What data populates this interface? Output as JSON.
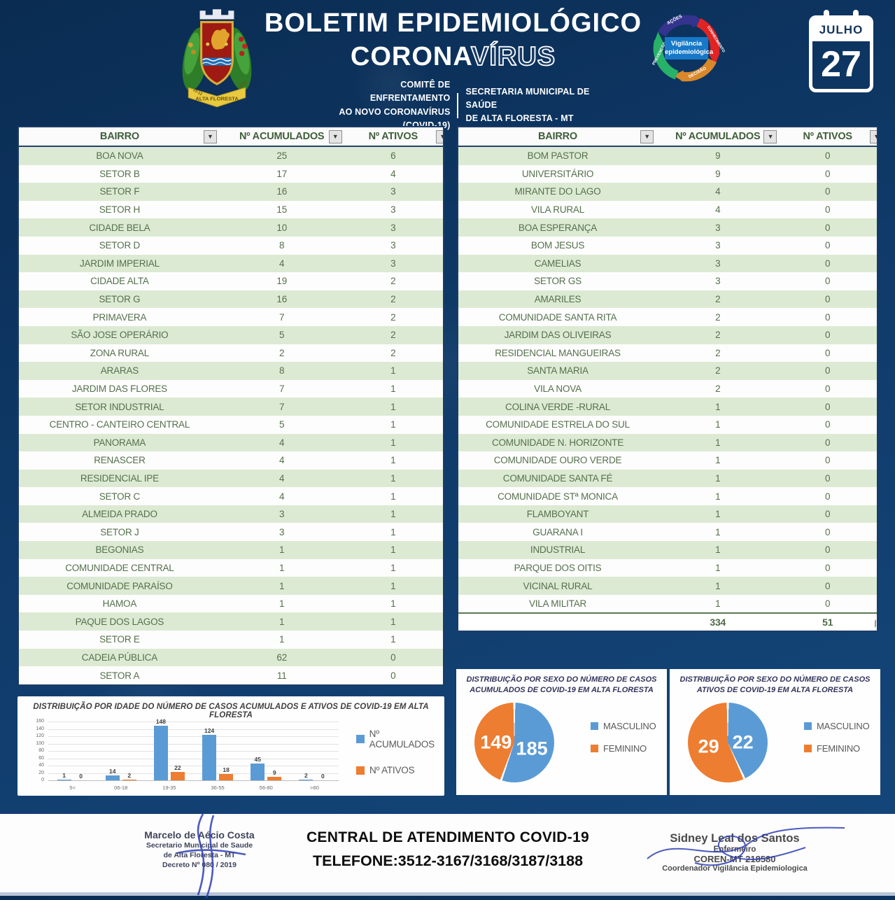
{
  "header": {
    "title_line1": "BOLETIM EPIDEMIOLÓGICO",
    "title_line2_solid": "CORONA",
    "title_line2_outline": "VÍRUS",
    "committee_line1": "COMITÊ DE ENFRENTAMENTO",
    "committee_line2": "AO NOVO CORONAVÍRUS (COVID-19)",
    "secretary_line1": "SECRETARIA MUNICIPAL DE SAÚDE",
    "secretary_line2": "DE ALTA FLORESTA - MT",
    "crest_label": "ALTA FLORESTA",
    "crest_year_left": "15-12",
    "crest_year_right": "1979",
    "cycle_logo": {
      "center_line1": "Vigilância",
      "center_line2": "epidemiológica",
      "arrows": [
        {
          "label": "AÇÕES",
          "color": "#34348f"
        },
        {
          "label": "CONHECIMENTO",
          "color": "#e02424"
        },
        {
          "label": "DECISÃO",
          "color": "#d8882a"
        },
        {
          "label": "PREVENÇÃO",
          "color": "#28b169"
        }
      ]
    },
    "calendar": {
      "month": "JULHO",
      "day": "27"
    }
  },
  "tables": {
    "columns": [
      "BAIRRO",
      "Nº ACUMULADOS",
      "Nº ATIVOS"
    ],
    "left_rows": [
      [
        "BOA NOVA",
        "25",
        "6"
      ],
      [
        "SETOR B",
        "17",
        "4"
      ],
      [
        "SETOR F",
        "16",
        "3"
      ],
      [
        "SETOR H",
        "15",
        "3"
      ],
      [
        "CIDADE BELA",
        "10",
        "3"
      ],
      [
        "SETOR D",
        "8",
        "3"
      ],
      [
        "JARDIM IMPERIAL",
        "4",
        "3"
      ],
      [
        "CIDADE ALTA",
        "19",
        "2"
      ],
      [
        "SETOR G",
        "16",
        "2"
      ],
      [
        "PRIMAVERA",
        "7",
        "2"
      ],
      [
        "SÃO JOSE OPERÁRIO",
        "5",
        "2"
      ],
      [
        "ZONA RURAL",
        "2",
        "2"
      ],
      [
        "ARARAS",
        "8",
        "1"
      ],
      [
        "JARDIM DAS FLORES",
        "7",
        "1"
      ],
      [
        "SETOR INDUSTRIAL",
        "7",
        "1"
      ],
      [
        "CENTRO - CANTEIRO CENTRAL",
        "5",
        "1"
      ],
      [
        "PANORAMA",
        "4",
        "1"
      ],
      [
        "RENASCER",
        "4",
        "1"
      ],
      [
        "RESIDENCIAL IPE",
        "4",
        "1"
      ],
      [
        "SETOR C",
        "4",
        "1"
      ],
      [
        "ALMEIDA PRADO",
        "3",
        "1"
      ],
      [
        "SETOR J",
        "3",
        "1"
      ],
      [
        "BEGONIAS",
        "1",
        "1"
      ],
      [
        "COMUNIDADE CENTRAL",
        "1",
        "1"
      ],
      [
        "COMUNIDADE PARAÍSO",
        "1",
        "1"
      ],
      [
        "HAMOA",
        "1",
        "1"
      ],
      [
        "PAQUE DOS LAGOS",
        "1",
        "1"
      ],
      [
        "SETOR E",
        "1",
        "1"
      ],
      [
        "CADEIA PÚBLICA",
        "62",
        "0"
      ],
      [
        "SETOR A",
        "11",
        "0"
      ]
    ],
    "right_rows": [
      [
        "BOM PASTOR",
        "9",
        "0"
      ],
      [
        "UNIVERSITÁRIO",
        "9",
        "0"
      ],
      [
        "MIRANTE DO LAGO",
        "4",
        "0"
      ],
      [
        "VILA RURAL",
        "4",
        "0"
      ],
      [
        "BOA ESPERANÇA",
        "3",
        "0"
      ],
      [
        "BOM JESUS",
        "3",
        "0"
      ],
      [
        "CAMELIAS",
        "3",
        "0"
      ],
      [
        "SETOR GS",
        "3",
        "0"
      ],
      [
        "AMARILES",
        "2",
        "0"
      ],
      [
        "COMUNIDADE SANTA RITA",
        "2",
        "0"
      ],
      [
        "JARDIM DAS OLIVEIRAS",
        "2",
        "0"
      ],
      [
        "RESIDENCIAL MANGUEIRAS",
        "2",
        "0"
      ],
      [
        "SANTA MARIA",
        "2",
        "0"
      ],
      [
        "VILA NOVA",
        "2",
        "0"
      ],
      [
        "COLINA VERDE -RURAL",
        "1",
        "0"
      ],
      [
        "COMUNIDADE ESTRELA DO SUL",
        "1",
        "0"
      ],
      [
        "COMUNIDADE N. HORIZONTE",
        "1",
        "0"
      ],
      [
        "COMUNIDADE OURO VERDE",
        "1",
        "0"
      ],
      [
        "COMUNIDADE SANTA FÉ",
        "1",
        "0"
      ],
      [
        "COMUNIDADE STª MONICA",
        "1",
        "0"
      ],
      [
        "FLAMBOYANT",
        "1",
        "0"
      ],
      [
        "GUARANA I",
        "1",
        "0"
      ],
      [
        "INDUSTRIAL",
        "1",
        "0"
      ],
      [
        "PARQUE DOS OITIS",
        "1",
        "0"
      ],
      [
        "VICINAL RURAL",
        "1",
        "0"
      ],
      [
        "VILA MILITAR",
        "1",
        "0"
      ]
    ],
    "right_total": {
      "acumulados": "334",
      "ativos": "51"
    }
  },
  "chart_data": [
    {
      "type": "bar",
      "title": "DISTRIBUIÇÃO POR IDADE DO NÚMERO DE CASOS ACUMULADOS E ATIVOS DE COVID-19 EM ALTA FLORESTA",
      "categories": [
        "5<",
        "06-18",
        "19-35",
        "36-55",
        "56-80",
        ">80"
      ],
      "series": [
        {
          "name": "Nº ACUMULADOS",
          "color": "#5b9bd5",
          "values": [
            1,
            14,
            148,
            124,
            45,
            2
          ]
        },
        {
          "name": "Nº ATIVOS",
          "color": "#ed7d31",
          "values": [
            0,
            2,
            22,
            18,
            9,
            0
          ]
        }
      ],
      "xlabel": "",
      "ylabel": "",
      "ylim": [
        0,
        160
      ],
      "ytick_step": 20,
      "grid": true,
      "legend_position": "right"
    },
    {
      "type": "pie",
      "title": "DISTRIBUIÇÃO POR SEXO DO NÚMERO DE CASOS ACUMULADOS DE COVID-19 EM ALTA FLORESTA",
      "title_lines": [
        "DISTRIBUIÇÃO POR SEXO DO NÚMERO DE CASOS",
        "ACUMULADOS DE COVID-19 EM ALTA FLORESTA"
      ],
      "labels": [
        "MASCULINO",
        "FEMININO"
      ],
      "values": [
        185,
        149
      ],
      "colors": [
        "#5b9bd5",
        "#ed7d31"
      ],
      "legend_position": "right"
    },
    {
      "type": "pie",
      "title": "DISTRIBUIÇÃO POR SEXO DO NÚMERO DE CASOS ATIVOS DE COVID-19 EM ALTA FLORESTA",
      "title_lines": [
        "DISTRIBUIÇÃO POR SEXO DO NÚMERO DE CASOS",
        "ATIVOS DE COVID-19 EM ALTA FLORESTA"
      ],
      "labels": [
        "MASCULINO",
        "FEMININO"
      ],
      "values": [
        22,
        29
      ],
      "colors": [
        "#5b9bd5",
        "#ed7d31"
      ],
      "legend_position": "right"
    }
  ],
  "footer": {
    "left_signature": {
      "line1": "Marcelo de Aécio Costa",
      "line2": "Secretario Municipal de Saude",
      "line3": "de Alta Floresta - MT",
      "line4": "Decreto Nº 080 / 2019"
    },
    "center_line1": "CENTRAL DE ATENDIMENTO COVID-19",
    "center_line2": "TELEFONE:3512-3167/3168/3187/3188",
    "right_signature": {
      "line1": "Sidney Leal dos Santos",
      "line2": "Enfermeiro",
      "line3": "COREN-MT 218580",
      "line4": "Coordenador Vigilância Epidemiologica"
    }
  },
  "colors": {
    "background_navy": "#0f3a69",
    "accent_blue": "#5b9bd5",
    "accent_orange": "#ed7d31",
    "table_row_green": "#dcead3",
    "table_text_green": "#55704c",
    "border_navy": "#1c3c66"
  }
}
